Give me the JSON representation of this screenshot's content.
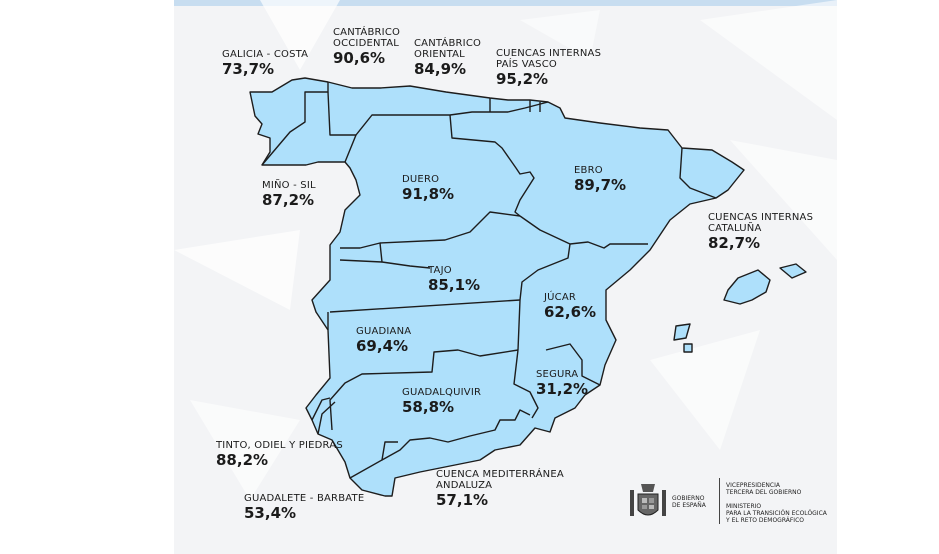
{
  "basins": [
    {
      "id": "galicia",
      "name": "GALICIA - COSTA",
      "value": "73,7%"
    },
    {
      "id": "cant-occ",
      "name": "CANTÁBRICO\nOCCIDENTAL",
      "value": "90,6%"
    },
    {
      "id": "cant-or",
      "name": "CANTÁBRICO\nORIENTAL",
      "value": "84,9%"
    },
    {
      "id": "pais-vasco",
      "name": "CUENCAS INTERNAS\nPAÍS VASCO",
      "value": "95,2%"
    },
    {
      "id": "mino",
      "name": "MIÑO - SIL",
      "value": "87,2%"
    },
    {
      "id": "duero",
      "name": "DUERO",
      "value": "91,8%"
    },
    {
      "id": "ebro",
      "name": "EBRO",
      "value": "89,7%"
    },
    {
      "id": "cataluna",
      "name": "CUENCAS INTERNAS\nCATALUÑA",
      "value": "82,7%"
    },
    {
      "id": "tajo",
      "name": "TAJO",
      "value": "85,1%"
    },
    {
      "id": "jucar",
      "name": "JÚCAR",
      "value": "62,6%"
    },
    {
      "id": "guadiana",
      "name": "GUADIANA",
      "value": "69,4%"
    },
    {
      "id": "segura",
      "name": "SEGURA",
      "value": "31,2%"
    },
    {
      "id": "guadalquivir",
      "name": "GUADALQUIVIR",
      "value": "58,8%"
    },
    {
      "id": "tinto",
      "name": "TINTO, ODIEL Y PIEDRAS",
      "value": "88,2%"
    },
    {
      "id": "med-andaluza",
      "name": "CUENCA MEDITERRÁNEA\nANDALUZA",
      "value": "57,1%"
    },
    {
      "id": "guadalete",
      "name": "GUADALETE - BARBATE",
      "value": "53,4%"
    }
  ],
  "logo": {
    "gobierno": "GOBIERNO\nDE ESPAÑA",
    "vicepresidencia": "VICEPRESIDENCIA\nTERCERA DEL GOBIERNO",
    "ministerio": "MINISTERIO\nPARA LA TRANSICIÓN ECOLÓGICA\nY EL RETO DEMOGRÁFICO"
  },
  "colors": {
    "land": "#aee0fb",
    "border": "#1d1d1d",
    "background": "#f3f4f6",
    "accent": "#c7ddf0"
  }
}
